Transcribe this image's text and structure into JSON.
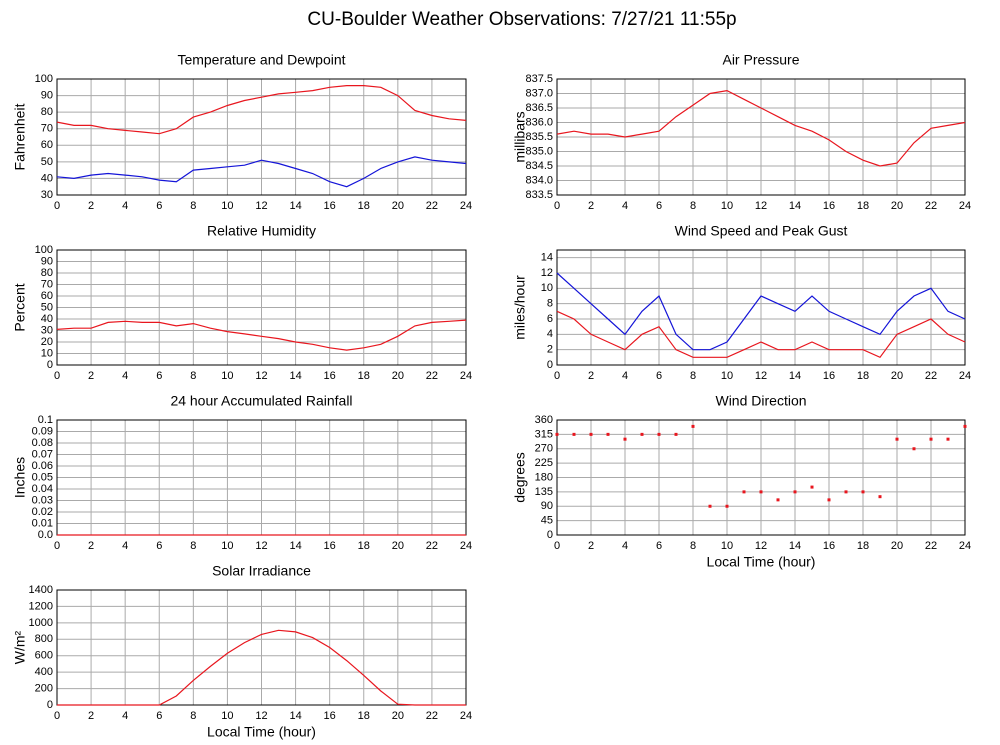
{
  "title": "CU-Boulder Weather Observations: 7/27/21 11:55p",
  "chart_data": [
    {
      "type": "line",
      "title": "Temperature and Dewpoint",
      "y_label": "Fahrenheit",
      "x": [
        0,
        1,
        2,
        3,
        4,
        5,
        6,
        7,
        8,
        9,
        10,
        11,
        12,
        13,
        14,
        15,
        16,
        17,
        18,
        19,
        20,
        21,
        22,
        23,
        24
      ],
      "series": [
        {
          "color": "#e8161e",
          "values": [
            74,
            72,
            72,
            70,
            69,
            68,
            67,
            70,
            77,
            80,
            84,
            87,
            89,
            91,
            92,
            93,
            95,
            96,
            96,
            95,
            90,
            81,
            78,
            76,
            75
          ]
        },
        {
          "color": "#1414d8",
          "values": [
            41,
            40,
            42,
            43,
            42,
            41,
            39,
            38,
            45,
            46,
            47,
            48,
            51,
            49,
            46,
            43,
            38,
            35,
            40,
            46,
            50,
            53,
            51,
            50,
            49
          ]
        }
      ],
      "xlim": [
        0,
        24
      ],
      "xticks": [
        0,
        2,
        4,
        6,
        8,
        10,
        12,
        14,
        16,
        18,
        20,
        22,
        24
      ],
      "ylim": [
        30,
        100
      ],
      "yticks": [
        30,
        40,
        50,
        60,
        70,
        80,
        90,
        100
      ],
      "grid": true
    },
    {
      "type": "line",
      "title": "Air Pressure",
      "y_label": "millibars",
      "x": [
        0,
        1,
        2,
        3,
        4,
        5,
        6,
        7,
        8,
        9,
        10,
        11,
        12,
        13,
        14,
        15,
        16,
        17,
        18,
        19,
        20,
        21,
        22,
        23,
        24
      ],
      "series": [
        {
          "color": "#e8161e",
          "values": [
            835.6,
            835.7,
            835.6,
            835.6,
            835.5,
            835.6,
            835.7,
            836.2,
            836.6,
            837.0,
            837.1,
            836.8,
            836.5,
            836.2,
            835.9,
            835.7,
            835.4,
            835.0,
            834.7,
            834.5,
            834.6,
            835.3,
            835.8,
            835.9,
            836.0
          ]
        }
      ],
      "xlim": [
        0,
        24
      ],
      "xticks": [
        0,
        2,
        4,
        6,
        8,
        10,
        12,
        14,
        16,
        18,
        20,
        22,
        24
      ],
      "ylim": [
        833.5,
        837.5
      ],
      "yticks": [
        833.5,
        {
          "value": 834,
          "label": "834.0"
        },
        834.5,
        {
          "value": 835,
          "label": "835.0"
        },
        835.5,
        {
          "value": 836,
          "label": "836.0"
        },
        836.5,
        {
          "value": 837,
          "label": "837.0"
        },
        837.5
      ],
      "grid": true
    },
    {
      "type": "line",
      "title": "Relative Humidity",
      "y_label": "Percent",
      "x": [
        0,
        1,
        2,
        3,
        4,
        5,
        6,
        7,
        8,
        9,
        10,
        11,
        12,
        13,
        14,
        15,
        16,
        17,
        18,
        19,
        20,
        21,
        22,
        23,
        24
      ],
      "series": [
        {
          "color": "#e8161e",
          "values": [
            31,
            32,
            32,
            37,
            38,
            37,
            37,
            34,
            36,
            32,
            29,
            27,
            25,
            23,
            20,
            18,
            15,
            13,
            15,
            18,
            25,
            34,
            37,
            38,
            39
          ]
        }
      ],
      "xlim": [
        0,
        24
      ],
      "xticks": [
        0,
        2,
        4,
        6,
        8,
        10,
        12,
        14,
        16,
        18,
        20,
        22,
        24
      ],
      "ylim": [
        0,
        100
      ],
      "yticks": [
        0,
        10,
        20,
        30,
        40,
        50,
        60,
        70,
        80,
        90,
        100
      ],
      "grid": true
    },
    {
      "type": "line",
      "title": "Wind Speed and Peak Gust",
      "y_label": "miles/hour",
      "x": [
        0,
        1,
        2,
        3,
        4,
        5,
        6,
        7,
        8,
        9,
        10,
        11,
        12,
        13,
        14,
        15,
        16,
        17,
        18,
        19,
        20,
        21,
        22,
        23,
        24
      ],
      "series": [
        {
          "color": "#1414d8",
          "values": [
            12,
            10,
            8,
            6,
            4,
            7,
            9,
            4,
            2,
            2,
            3,
            6,
            9,
            8,
            7,
            9,
            7,
            6,
            5,
            4,
            7,
            9,
            10,
            7,
            6
          ]
        },
        {
          "color": "#e8161e",
          "values": [
            7,
            6,
            4,
            3,
            2,
            4,
            5,
            2,
            1,
            1,
            1,
            2,
            3,
            2,
            2,
            3,
            2,
            2,
            2,
            1,
            4,
            5,
            6,
            4,
            3
          ]
        }
      ],
      "xlim": [
        0,
        24
      ],
      "xticks": [
        0,
        2,
        4,
        6,
        8,
        10,
        12,
        14,
        16,
        18,
        20,
        22,
        24
      ],
      "ylim": [
        0,
        15
      ],
      "yticks": [
        0,
        2,
        4,
        6,
        8,
        10,
        12,
        14
      ],
      "grid": true
    },
    {
      "type": "line",
      "title": "24 hour Accumulated Rainfall",
      "y_label": "Inches",
      "x": [
        0,
        24
      ],
      "series": [
        {
          "color": "#e8161e",
          "values": [
            0,
            0
          ]
        }
      ],
      "xlim": [
        0,
        24
      ],
      "xticks": [
        0,
        2,
        4,
        6,
        8,
        10,
        12,
        14,
        16,
        18,
        20,
        22,
        24
      ],
      "ylim": [
        0,
        0.1
      ],
      "yticks": [
        {
          "value": 0,
          "label": "0.0"
        },
        0.01,
        0.02,
        0.03,
        0.04,
        0.05,
        0.06,
        0.07,
        0.08,
        0.09,
        0.1
      ],
      "grid": true
    },
    {
      "type": "scatter",
      "title": "Wind Direction",
      "y_label": "degrees",
      "x_label": "Local Time (hour)",
      "x": [
        0,
        1,
        2,
        3,
        4,
        5,
        6,
        7,
        8,
        9,
        10,
        11,
        12,
        13,
        14,
        15,
        16,
        17,
        18,
        19,
        20,
        21,
        22,
        23,
        24
      ],
      "values": [
        315,
        315,
        315,
        315,
        300,
        315,
        315,
        315,
        340,
        90,
        90,
        135,
        135,
        110,
        135,
        150,
        110,
        135,
        135,
        120,
        300,
        270,
        300,
        300,
        340
      ],
      "color": "#e8161e",
      "xlim": [
        0,
        24
      ],
      "xticks": [
        0,
        2,
        4,
        6,
        8,
        10,
        12,
        14,
        16,
        18,
        20,
        22,
        24
      ],
      "ylim": [
        0,
        360
      ],
      "yticks": [
        0,
        45,
        90,
        135,
        180,
        225,
        270,
        315,
        360
      ],
      "grid": true
    },
    {
      "type": "line",
      "title": "Solar Irradiance",
      "y_label": "W/m²",
      "x_label": "Local Time (hour)",
      "x": [
        0,
        1,
        2,
        3,
        4,
        5,
        6,
        7,
        8,
        9,
        10,
        11,
        12,
        13,
        14,
        15,
        16,
        17,
        18,
        19,
        20,
        21,
        22,
        23,
        24
      ],
      "series": [
        {
          "color": "#e8161e",
          "values": [
            0,
            0,
            0,
            0,
            0,
            0,
            0,
            110,
            300,
            470,
            630,
            760,
            860,
            910,
            890,
            820,
            700,
            540,
            360,
            170,
            10,
            0,
            0,
            0,
            0
          ]
        }
      ],
      "xlim": [
        0,
        24
      ],
      "xticks": [
        0,
        2,
        4,
        6,
        8,
        10,
        12,
        14,
        16,
        18,
        20,
        22,
        24
      ],
      "ylim": [
        0,
        1400
      ],
      "yticks": [
        0,
        200,
        400,
        600,
        800,
        1000,
        1200,
        1400
      ],
      "grid": true
    }
  ]
}
